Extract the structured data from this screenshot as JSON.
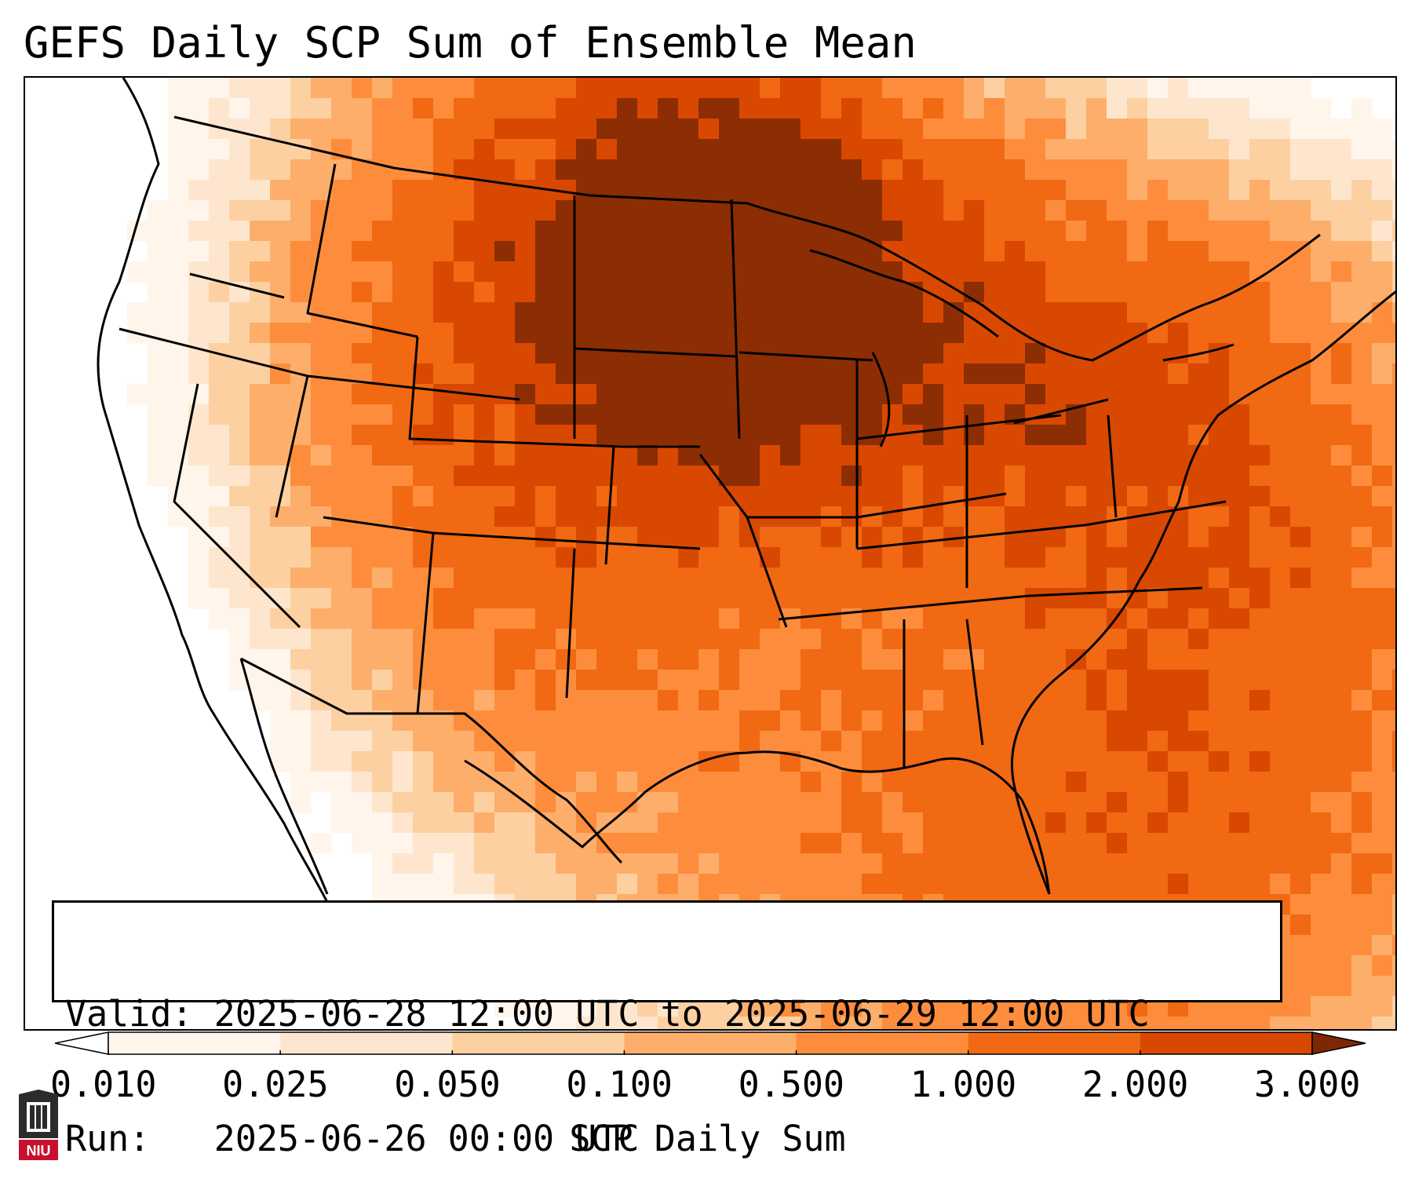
{
  "title": "GEFS Daily SCP Sum of Ensemble Mean",
  "info": {
    "valid_label": "Valid:",
    "valid_value": "2025-06-28 12:00 UTC to 2025-06-29 12:00 UTC",
    "run_label": "Run:",
    "run_value": "2025-06-26 00:00 UTC"
  },
  "colorbar": {
    "label": "SCP Daily Sum",
    "ticks": [
      "0.010",
      "0.025",
      "0.050",
      "0.100",
      "0.500",
      "1.000",
      "2.000",
      "3.000"
    ],
    "colors": [
      "#fff5eb",
      "#fee6ce",
      "#fdd0a2",
      "#fdae6b",
      "#fd8d3c",
      "#f16913",
      "#d94801",
      "#8c2d04"
    ],
    "under_color": "#ffffff",
    "over_color": "#7f2704"
  },
  "logo": {
    "text": "NIU",
    "colors": {
      "red": "#c8102e",
      "dark": "#2b2b2b"
    }
  },
  "map": {
    "projection": "conus",
    "features": [
      "coastlines",
      "state-borders",
      "country-borders"
    ],
    "max_region": "North Dakota",
    "field_name": "SCP Daily Sum"
  }
}
